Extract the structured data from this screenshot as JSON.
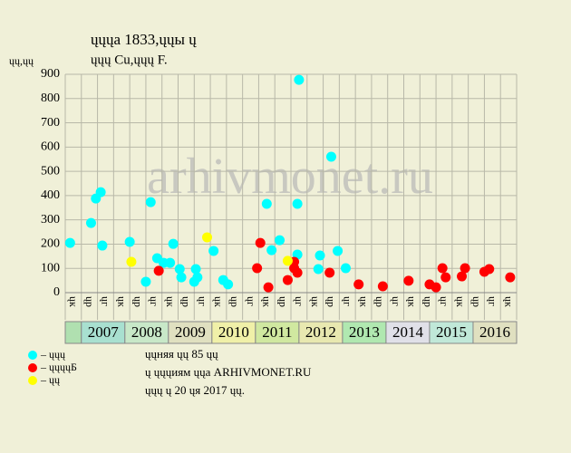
{
  "chart_data": {
    "type": "scatter",
    "title": "ųųųa 1833,ųųы ų",
    "subtitle": "ųųų Cu,ųųų F.",
    "y_label": "ųų,ųų",
    "watermark": "arhivmonet.ru",
    "ylim": [
      0,
      900
    ],
    "yticks": [
      0,
      100,
      200,
      300,
      400,
      500,
      600,
      700,
      800,
      900
    ],
    "xlim": [
      0,
      28
    ],
    "grid": true,
    "quarters": [
      "ųк",
      "ųр",
      "ųг",
      "ųк",
      "ųр",
      "ųг",
      "ųк",
      "ųр",
      "ųг",
      "ųк",
      "ųр",
      "ųг",
      "ųк",
      "ųр",
      "ųг",
      "ųк",
      "ųр",
      "ųг",
      "ųк",
      "ųр",
      "ųг",
      "ųк",
      "ųр",
      "ųг",
      "ųк",
      "ųр",
      "ųг",
      "ųк"
    ],
    "years": [
      "2007",
      "2008",
      "2009",
      "2010",
      "2011",
      "2012",
      "2013",
      "2014",
      "2015",
      "2016"
    ],
    "year_colors": [
      "#a8e0d0",
      "#c8e8c8",
      "#e0e0c0",
      "#f0f0a8",
      "#d0e8a0",
      "#e8e8b0",
      "#b0e8b0",
      "#e0e0e8",
      "#c0e8d8",
      "#e0e0c0"
    ],
    "first_cell_color": "#b0e0b0",
    "series": [
      {
        "name": "– ųųų",
        "color": "#00ffff",
        "x": [
          0.3,
          1.6,
          1.9,
          2.2,
          2.3,
          4.0,
          5.0,
          5.3,
          5.7,
          6.1,
          6.5,
          6.7,
          7.1,
          7.2,
          8.0,
          8.1,
          8.2,
          9.2,
          9.8,
          10.1,
          12.5,
          12.8,
          13.3,
          14.4,
          14.4,
          14.5,
          15.7,
          15.8,
          16.5,
          16.9,
          17.4
        ],
        "values": [
          205,
          287,
          388,
          414,
          194,
          209,
          45,
          373,
          142,
          123,
          123,
          201,
          97,
          63,
          45,
          97,
          63,
          172,
          52,
          34,
          366,
          175,
          216,
          366,
          157,
          877,
          97,
          153,
          560,
          172,
          101
        ]
      },
      {
        "name": "– ųųųųБ",
        "color": "#ff0000",
        "x": [
          5.8,
          11.9,
          12.1,
          12.6,
          13.8,
          14.2,
          14.2,
          14.4,
          16.4,
          18.2,
          19.7,
          21.3,
          22.6,
          23.0,
          23.4,
          23.6,
          24.6,
          24.8,
          26.0,
          26.3,
          27.6
        ],
        "values": [
          90,
          101,
          205,
          22,
          52,
          127,
          101,
          82,
          82,
          34,
          26,
          49,
          34,
          22,
          101,
          63,
          67,
          101,
          86,
          97,
          63
        ]
      },
      {
        "name": "– ųų",
        "color": "#ffff00",
        "x": [
          4.1,
          8.8,
          13.8
        ],
        "values": [
          127,
          228,
          131
        ]
      }
    ],
    "notes": [
      "ųųняя ųų 85 ųų",
      "ų ųųųиям ųųа ARHIVMONET.RU",
      "ųųų ų 20 ųя 2017 ųų."
    ]
  }
}
